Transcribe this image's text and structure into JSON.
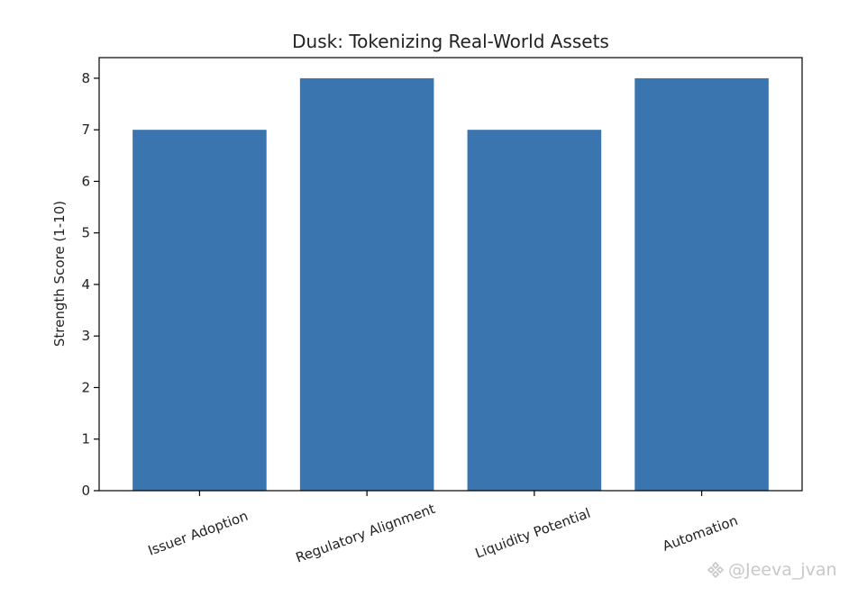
{
  "chart_data": {
    "type": "bar",
    "title": "Dusk: Tokenizing Real-World Assets",
    "xlabel": "",
    "ylabel": "Strength Score (1-10)",
    "categories": [
      "Issuer Adoption",
      "Regulatory Alignment",
      "Liquidity Potential",
      "Automation"
    ],
    "values": [
      7,
      8,
      7,
      8
    ],
    "ylim": [
      0,
      8.4
    ],
    "yticks": [
      "0",
      "1",
      "2",
      "3",
      "4",
      "5",
      "6",
      "7",
      "8"
    ],
    "bar_color": "#3b75af",
    "grid": false,
    "legend": "none"
  },
  "watermark": {
    "icon": "binance-square-icon",
    "text": "@Jeeva_jvan"
  }
}
